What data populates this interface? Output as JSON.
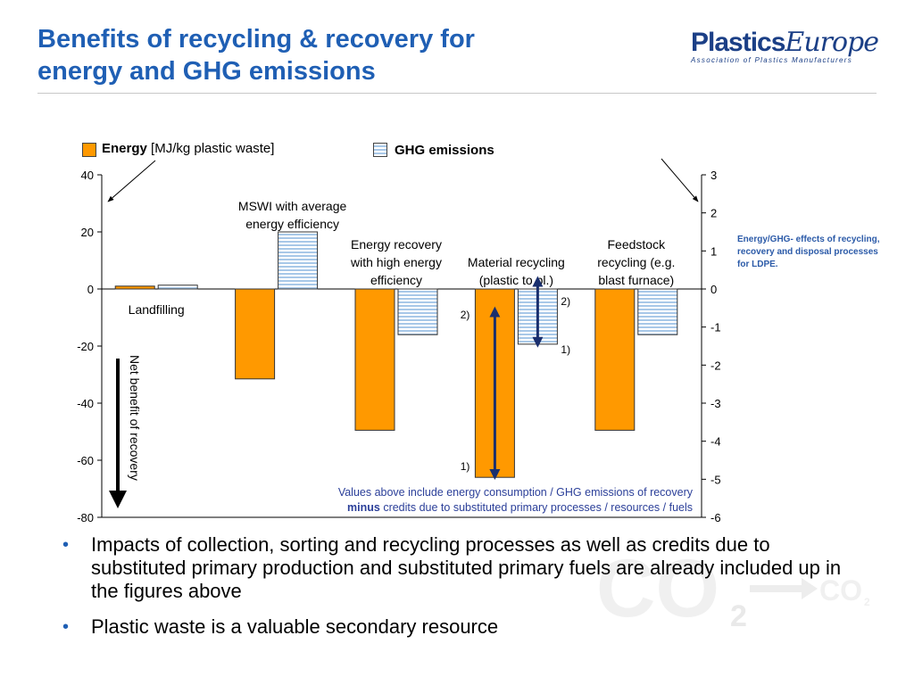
{
  "slide": {
    "title_line1": "Benefits of recycling & recovery for",
    "title_line2": "energy and GHG emissions"
  },
  "logo": {
    "word_bold": "Plastics",
    "word_italic": "Europe",
    "tagline": "Association of Plastics Manufacturers"
  },
  "note": "Energy/GHG- effects of recycling, recovery and disposal processes for LDPE.",
  "watermark": {
    "big": "CO",
    "sub": "2",
    "small": "CO",
    "small_sub": "2"
  },
  "bullets": [
    "Impacts of collection, sorting and recycling processes as well as credits due to substituted primary production and substituted primary fuels are already included up in the figures above",
    "Plastic waste is a valuable secondary resource"
  ],
  "colors": {
    "energy": "#ff9900",
    "ghg_fill": "#ffffff",
    "ghg_stripe": "#a8c8e8",
    "title": "#1f5fb4",
    "note": "#2b5aa8",
    "arrow": "#1a2f6e"
  },
  "chart_data": {
    "type": "bar",
    "categories": [
      "Landfilling",
      "MSWI with average energy efficiency",
      "Energy recovery with high energy efficiency",
      "Material recycling (plastic to pl.)",
      "Feedstock recycling (e.g. blast furnace)"
    ],
    "category_labels": [
      [
        "Landfilling"
      ],
      [
        "MSWI with average",
        "energy efficiency"
      ],
      [
        "Energy recovery",
        "with high energy",
        "efficiency"
      ],
      [
        "Material recycling",
        "(plastic to pl.)"
      ],
      [
        "Feedstock",
        "recycling (e.g.",
        "blast furnace)"
      ]
    ],
    "series": [
      {
        "name_bold": "Energy",
        "name_rest": " [MJ/kg plastic waste]",
        "axis": "left",
        "values": [
          1,
          -31.5,
          -49.5,
          -66,
          -49.5
        ]
      },
      {
        "name": "GHG emissions",
        "axis": "right",
        "values": [
          0.1,
          1.5,
          -1.2,
          -1.45,
          -1.2
        ]
      }
    ],
    "y_left": {
      "range": [
        -80,
        40
      ],
      "ticks": [
        "40",
        "20",
        "0",
        "-20",
        "-40",
        "-60",
        "-80"
      ]
    },
    "y_right": {
      "range": [
        -6,
        3
      ],
      "ticks": [
        "3",
        "2",
        "1",
        "0",
        "-1",
        "-2",
        "-3",
        "-4",
        "-5",
        "-6"
      ]
    },
    "range_arrows": [
      {
        "axis": "left",
        "from": -8,
        "to": -65
      },
      {
        "axis": "right",
        "from": 0.2,
        "to": -1.4
      }
    ],
    "marks": {
      "energy_top": "2)",
      "energy_bottom": "1)",
      "ghg_top": "2)",
      "ghg_bottom": "1)"
    },
    "net_benefit_label": "Net benefit of recovery",
    "footnote_line1": "Values above include energy consumption / GHG emissions of recovery",
    "footnote_bold": "minus",
    "footnote_rest": " credits due to substituted primary processes / resources / fuels",
    "grid": false,
    "legend": "top"
  }
}
